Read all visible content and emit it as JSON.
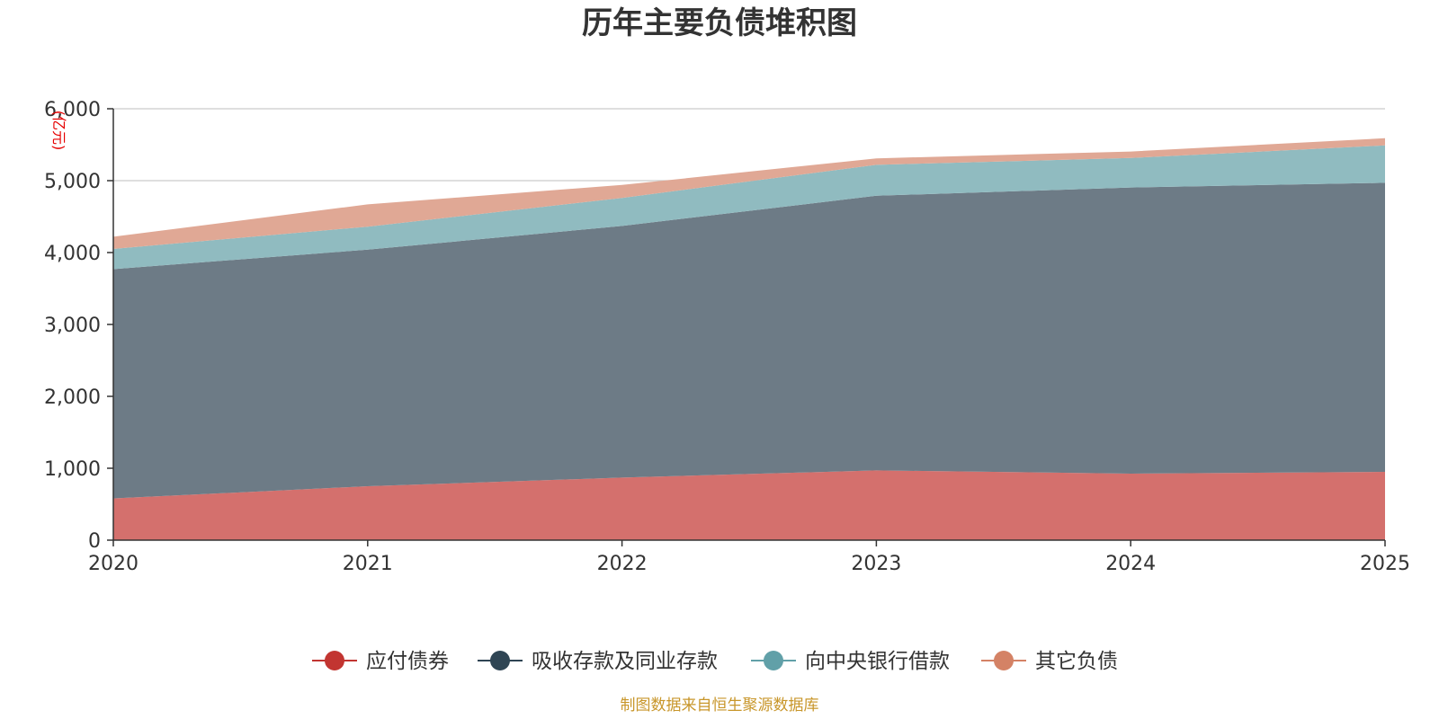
{
  "chart_data": {
    "type": "area",
    "stacked": true,
    "title": "历年主要负债堆积图",
    "ylabel": "(亿元)",
    "xlabel": "",
    "x": [
      "2020",
      "2021",
      "2022",
      "2023",
      "2024",
      "2025"
    ],
    "ylim": [
      0,
      6000
    ],
    "yticks": [
      "0",
      "1,000",
      "2,000",
      "3,000",
      "4,000",
      "5,000",
      "6,000"
    ],
    "grid": true,
    "legend_position": "bottom",
    "series": [
      {
        "name": "应付债券",
        "color": "#c23531",
        "fill": "#d4706d",
        "values": [
          580,
          750,
          870,
          970,
          925,
          950
        ]
      },
      {
        "name": "吸收存款及同业存款",
        "color": "#2f4554",
        "fill": "#6d7b86",
        "values": [
          3190,
          3290,
          3500,
          3820,
          3980,
          4020
        ]
      },
      {
        "name": "向中央银行借款",
        "color": "#61a0a8",
        "fill": "#90bbc0",
        "values": [
          280,
          320,
          390,
          430,
          410,
          520
        ]
      },
      {
        "name": "其它负债",
        "color": "#d48265",
        "fill": "#e0a895",
        "values": [
          170,
          310,
          180,
          90,
          90,
          100
        ]
      }
    ],
    "source": "制图数据来自恒生聚源数据库"
  }
}
